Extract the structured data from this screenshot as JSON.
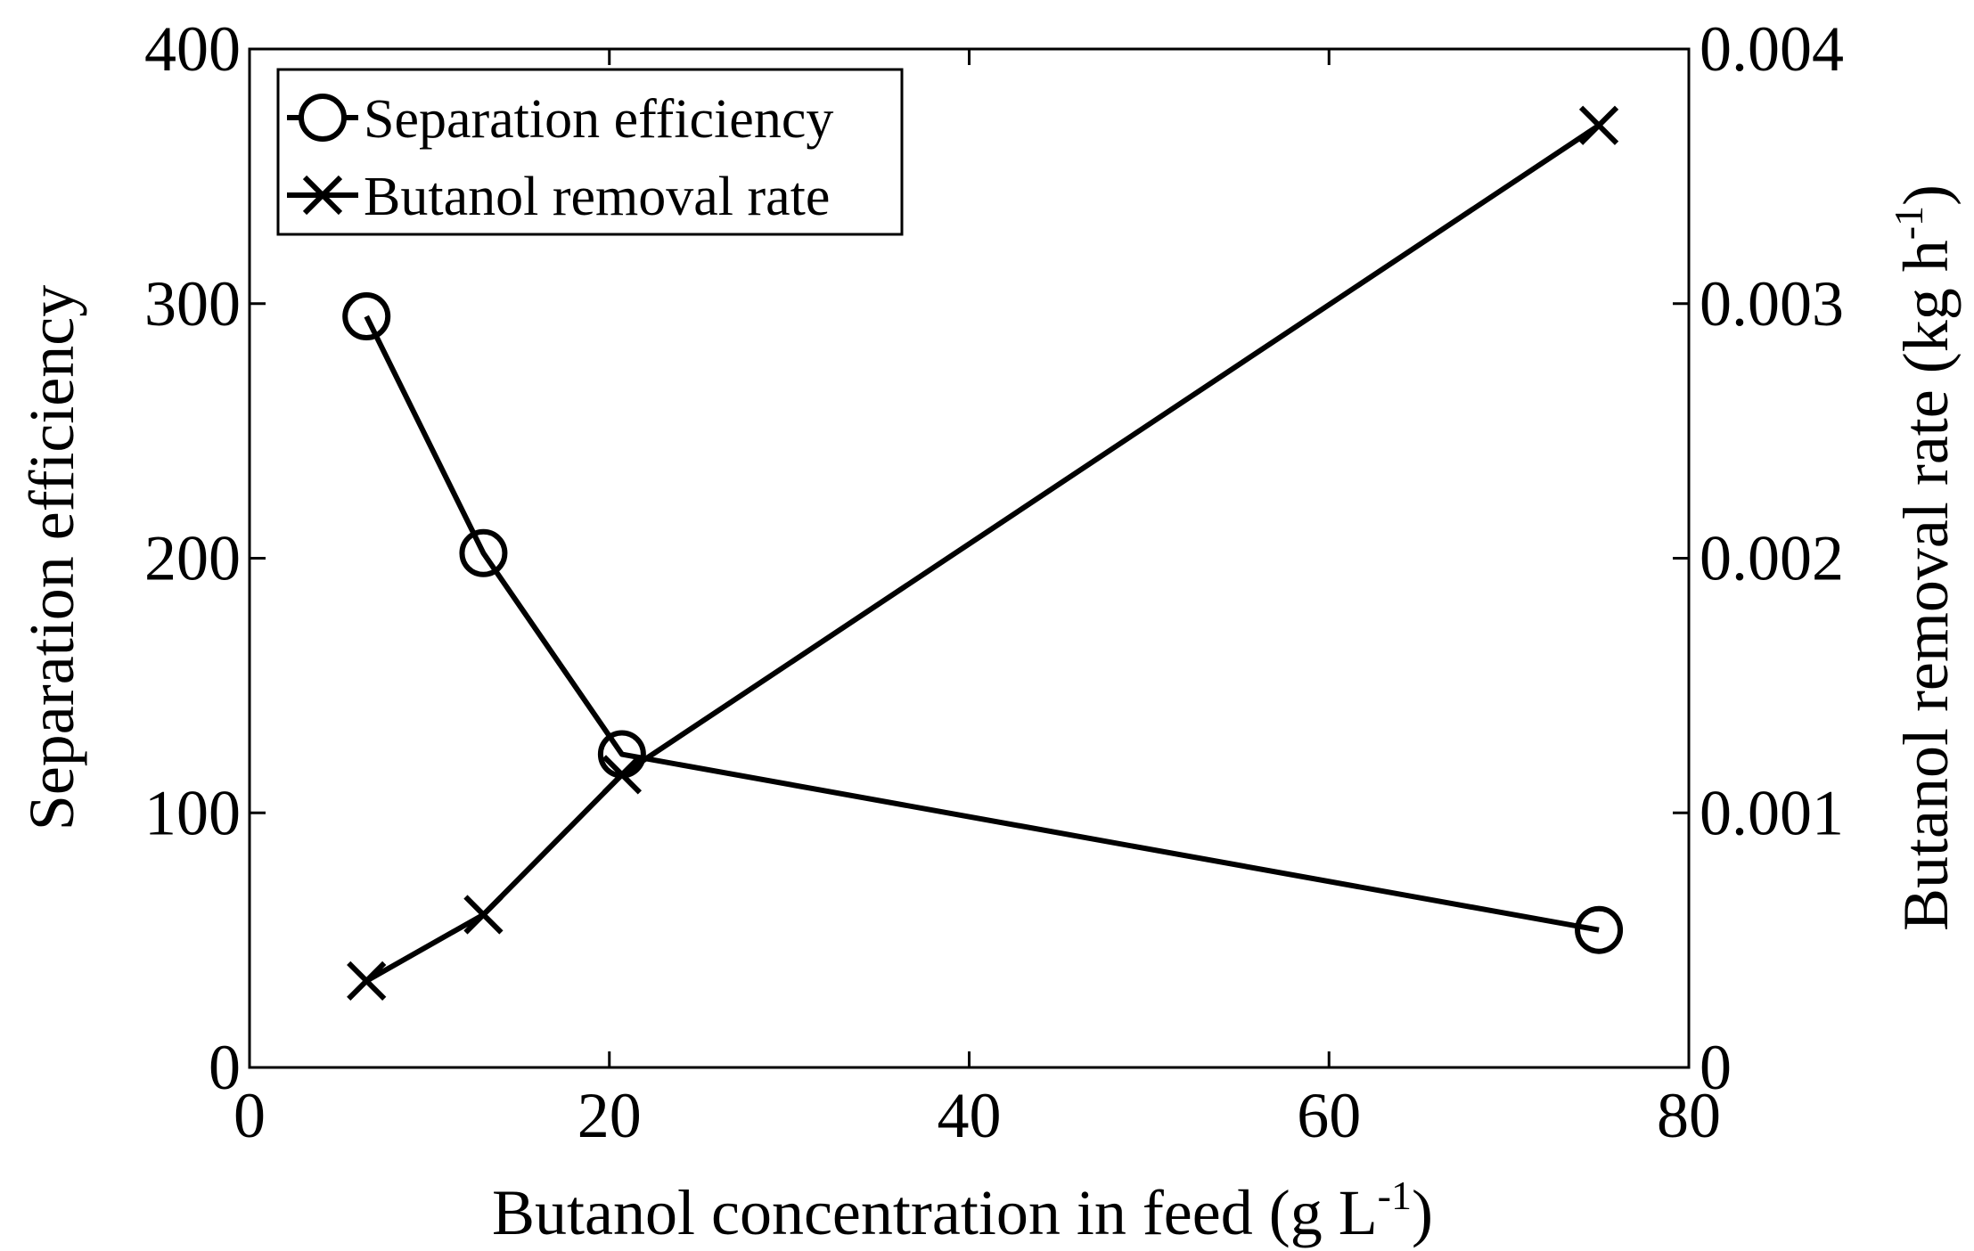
{
  "chart_data": {
    "type": "line",
    "x": [
      6.5,
      13,
      20.7,
      75
    ],
    "xlabel": {
      "main": "Butanol concentration in feed (g L",
      "sup": "-1",
      "tail": ")"
    },
    "xlim": [
      0,
      80
    ],
    "xticks": [
      0,
      20,
      40,
      60,
      80
    ],
    "xtick_labels": [
      "0",
      "20",
      "40",
      "60",
      "80"
    ],
    "ylabel_left": "Separation efficiency",
    "ylim_left": [
      0,
      400
    ],
    "yticks_left": [
      0,
      100,
      200,
      300,
      400
    ],
    "ytick_labels_left": [
      "0",
      "100",
      "200",
      "300",
      "400"
    ],
    "ylabel_right": {
      "main": "Butanol removal rate (kg h",
      "sup": "-1",
      "tail": ")"
    },
    "ylim_right": [
      0,
      0.004
    ],
    "yticks_right": [
      0,
      0.001,
      0.002,
      0.003,
      0.004
    ],
    "ytick_labels_right": [
      "0",
      "0.001",
      "0.002",
      "0.003",
      "0.004"
    ],
    "series": [
      {
        "name": "Separation efficiency",
        "axis": "left",
        "marker": "circle",
        "values": [
          295,
          202,
          123,
          54
        ]
      },
      {
        "name": "Butanol removal rate",
        "axis": "right",
        "marker": "x",
        "values": [
          0.00034,
          0.0006,
          0.00115,
          0.0037
        ]
      }
    ],
    "legend": "top-left",
    "grid": false
  },
  "colors": {
    "line": "#000000",
    "background": "#ffffff"
  }
}
